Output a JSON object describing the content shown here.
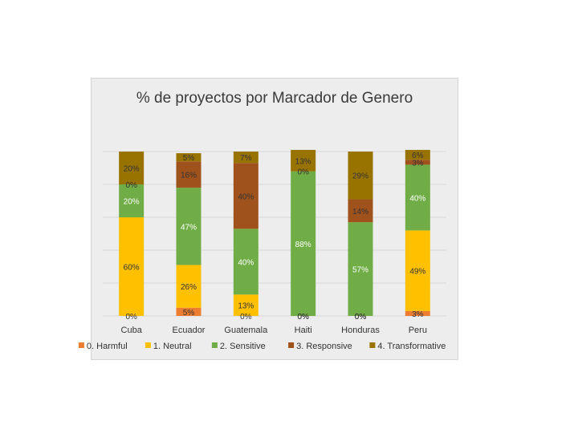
{
  "chart_data": {
    "type": "bar",
    "stacked": "percent",
    "title": "% de proyectos por Marcador de Genero",
    "categories": [
      "Cuba",
      "Ecuador",
      "Guatemala",
      "Haiti",
      "Honduras",
      "Peru"
    ],
    "series": [
      {
        "name": "0. Harmful",
        "color": "#ed7d31",
        "values": [
          0,
          5,
          0,
          0,
          0,
          3
        ]
      },
      {
        "name": "1. Neutral",
        "color": "#ffc000",
        "values": [
          60,
          26,
          13,
          0,
          0,
          49
        ]
      },
      {
        "name": "2. Sensitive",
        "color": "#70ad47",
        "values": [
          20,
          47,
          40,
          88,
          57,
          40
        ]
      },
      {
        "name": "3. Responsive",
        "color": "#a0521c",
        "values": [
          0,
          16,
          40,
          0,
          14,
          3
        ]
      },
      {
        "name": "4. Transformative",
        "color": "#997300",
        "values": [
          20,
          5,
          7,
          13,
          29,
          6
        ]
      }
    ],
    "data_labels": [
      [
        "0%",
        "60%",
        "20%",
        "0%",
        "20%"
      ],
      [
        "5%",
        "26%",
        "47%",
        "16%",
        "5%"
      ],
      [
        "0%",
        "13%",
        "40%",
        "40%",
        "7%"
      ],
      [
        "0%",
        "0%",
        "88%",
        "0%",
        "13%"
      ],
      [
        "0%",
        "0%",
        "57%",
        "14%",
        "29%"
      ],
      [
        "3%",
        "49%",
        "40%",
        "3%",
        "6%"
      ]
    ],
    "ylim": [
      0,
      100
    ],
    "grid": true,
    "legend_position": "bottom"
  }
}
